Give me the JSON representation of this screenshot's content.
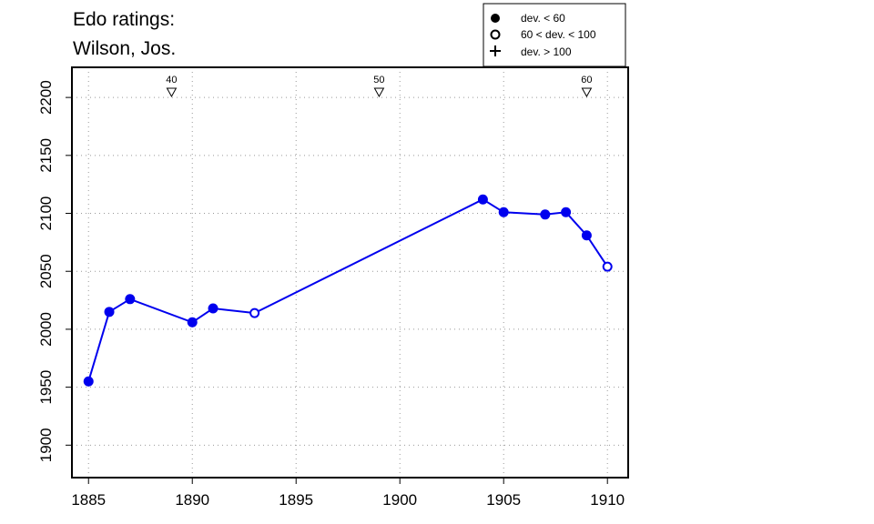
{
  "chart_data": {
    "type": "line",
    "title_lines": [
      "Edo ratings:",
      "Wilson, Jos."
    ],
    "xlabel": "",
    "ylabel": "",
    "xlim": [
      1884.2,
      1911.0
    ],
    "ylim": [
      1872,
      2226
    ],
    "xticks": [
      1885,
      1890,
      1895,
      1900,
      1905,
      1910
    ],
    "yticks": [
      1900,
      1950,
      2000,
      2050,
      2100,
      2150,
      2200
    ],
    "grid": true,
    "series_color": "#0000ee",
    "series": [
      {
        "x": [
          1885,
          1886,
          1887,
          1890,
          1891,
          1893,
          1904,
          1905,
          1907,
          1908,
          1909,
          1910
        ],
        "values": [
          1955,
          2015,
          2026,
          2006,
          2018,
          2014,
          2112,
          2101,
          2099,
          2101,
          2081,
          2054
        ],
        "deviation_class": [
          "low",
          "low",
          "low",
          "low",
          "low",
          "mid",
          "low",
          "low",
          "low",
          "low",
          "low",
          "mid"
        ]
      }
    ],
    "markers": [
      {
        "x": 1889,
        "label": "40"
      },
      {
        "x": 1899,
        "label": "50"
      },
      {
        "x": 1909,
        "label": "60"
      }
    ],
    "legend": {
      "position": "top-right",
      "entries": [
        {
          "symbol": "filled-circle",
          "label": "dev. < 60"
        },
        {
          "symbol": "open-circle",
          "label": "60 < dev. < 100"
        },
        {
          "symbol": "plus",
          "label": "dev. > 100"
        }
      ]
    }
  }
}
